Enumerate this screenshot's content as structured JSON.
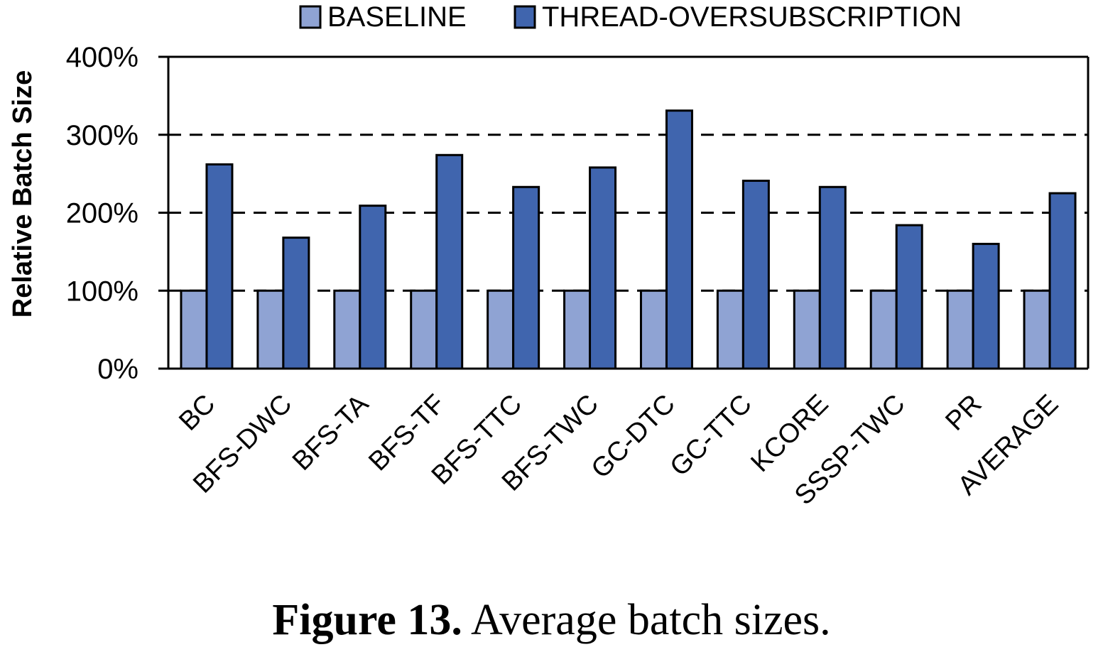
{
  "chart_data": {
    "type": "bar",
    "categories": [
      "BC",
      "BFS-DWC",
      "BFS-TA",
      "BFS-TF",
      "BFS-TTC",
      "BFS-TWC",
      "GC-DTC",
      "GC-TTC",
      "KCORE",
      "SSSP-TWC",
      "PR",
      "AVERAGE"
    ],
    "series": [
      {
        "name": "BASELINE",
        "color": "#8FA3D3",
        "values": [
          100,
          100,
          100,
          100,
          100,
          100,
          100,
          100,
          100,
          100,
          100,
          100
        ]
      },
      {
        "name": "THREAD-OVERSUBSCRIPTION",
        "color": "#4065AE",
        "values": [
          262,
          168,
          209,
          274,
          233,
          258,
          331,
          241,
          233,
          184,
          160,
          225
        ]
      }
    ],
    "ylabel": "Relative Batch Size",
    "xlabel": "",
    "ylim": [
      0,
      400
    ],
    "yticks": [
      0,
      100,
      200,
      300,
      400
    ],
    "ytick_labels": [
      "0%",
      "100%",
      "200%",
      "300%",
      "400%"
    ],
    "grid": "dashed horizontal at 100%, 200%, 300%",
    "legend_position": "top-center"
  },
  "caption": {
    "label": "Figure 13.",
    "text": "Average batch sizes."
  }
}
